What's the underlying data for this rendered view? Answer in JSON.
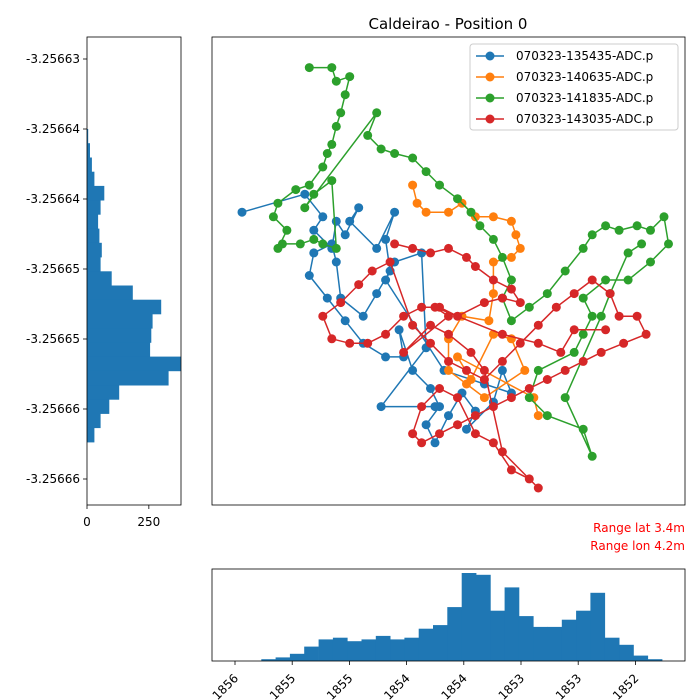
{
  "chart_data": [
    {
      "type": "scatter",
      "panel": "main",
      "title": "Caldeirao - Position 0",
      "grid": false,
      "legend_placement": "top-right",
      "xlim": [
        -3.2568,
        3.2563
      ],
      "ylim": [
        -3.256666,
        -3.256633
      ],
      "annotations": [
        "Range lat 3.4m",
        "Range lon 4.2m"
      ],
      "series": [
        {
          "name": "070323-135435-ADC.p",
          "color": "#1f77b4",
          "points": [
            [
              0.04,
              0.37
            ],
            [
              0.18,
              0.33
            ],
            [
              0.22,
              0.38
            ],
            [
              0.2,
              0.41
            ],
            [
              0.24,
              0.45
            ],
            [
              0.25,
              0.39
            ],
            [
              0.27,
              0.42
            ],
            [
              0.3,
              0.36
            ],
            [
              0.28,
              0.39
            ],
            [
              0.34,
              0.45
            ],
            [
              0.38,
              0.37
            ],
            [
              0.36,
              0.43
            ],
            [
              0.37,
              0.5
            ],
            [
              0.34,
              0.55
            ],
            [
              0.31,
              0.6
            ],
            [
              0.26,
              0.56
            ],
            [
              0.25,
              0.48
            ],
            [
              0.24,
              0.44
            ],
            [
              0.2,
              0.46
            ],
            [
              0.19,
              0.51
            ],
            [
              0.23,
              0.56
            ],
            [
              0.27,
              0.61
            ],
            [
              0.31,
              0.66
            ],
            [
              0.36,
              0.69
            ],
            [
              0.4,
              0.69
            ],
            [
              0.39,
              0.63
            ],
            [
              0.42,
              0.72
            ],
            [
              0.46,
              0.76
            ],
            [
              0.48,
              0.8
            ],
            [
              0.45,
              0.84
            ],
            [
              0.47,
              0.88
            ],
            [
              0.5,
              0.82
            ],
            [
              0.53,
              0.77
            ],
            [
              0.56,
              0.81
            ],
            [
              0.54,
              0.85
            ],
            [
              0.6,
              0.79
            ],
            [
              0.62,
              0.72
            ],
            [
              0.64,
              0.77
            ],
            [
              0.58,
              0.75
            ],
            [
              0.49,
              0.72
            ],
            [
              0.36,
              0.52
            ],
            [
              0.38,
              0.48
            ],
            [
              0.44,
              0.46
            ],
            [
              0.45,
              0.67
            ],
            [
              0.35,
              0.8
            ],
            [
              0.47,
              0.8
            ]
          ]
        },
        {
          "name": "070323-140635-ADC.p",
          "color": "#ff7f0e",
          "points": [
            [
              0.42,
              0.31
            ],
            [
              0.43,
              0.35
            ],
            [
              0.45,
              0.37
            ],
            [
              0.5,
              0.37
            ],
            [
              0.53,
              0.35
            ],
            [
              0.56,
              0.38
            ],
            [
              0.6,
              0.38
            ],
            [
              0.64,
              0.39
            ],
            [
              0.65,
              0.42
            ],
            [
              0.66,
              0.45
            ],
            [
              0.64,
              0.47
            ],
            [
              0.6,
              0.48
            ],
            [
              0.6,
              0.55
            ],
            [
              0.59,
              0.61
            ],
            [
              0.53,
              0.6
            ],
            [
              0.5,
              0.65
            ],
            [
              0.5,
              0.72
            ],
            [
              0.54,
              0.75
            ],
            [
              0.58,
              0.78
            ],
            [
              0.67,
              0.72
            ],
            [
              0.64,
              0.65
            ],
            [
              0.6,
              0.64
            ],
            [
              0.55,
              0.74
            ],
            [
              0.52,
              0.69
            ],
            [
              0.69,
              0.78
            ],
            [
              0.7,
              0.82
            ]
          ]
        },
        {
          "name": "070323-141835-ADC.p",
          "color": "#2ca02c",
          "points": [
            [
              0.19,
              0.05
            ],
            [
              0.24,
              0.05
            ],
            [
              0.25,
              0.08
            ],
            [
              0.28,
              0.07
            ],
            [
              0.27,
              0.11
            ],
            [
              0.26,
              0.15
            ],
            [
              0.25,
              0.18
            ],
            [
              0.24,
              0.22
            ],
            [
              0.23,
              0.24
            ],
            [
              0.22,
              0.27
            ],
            [
              0.19,
              0.31
            ],
            [
              0.16,
              0.32
            ],
            [
              0.12,
              0.35
            ],
            [
              0.11,
              0.38
            ],
            [
              0.14,
              0.41
            ],
            [
              0.12,
              0.45
            ],
            [
              0.13,
              0.44
            ],
            [
              0.17,
              0.44
            ],
            [
              0.2,
              0.43
            ],
            [
              0.22,
              0.44
            ],
            [
              0.25,
              0.45
            ],
            [
              0.24,
              0.3
            ],
            [
              0.2,
              0.33
            ],
            [
              0.18,
              0.36
            ],
            [
              0.34,
              0.15
            ],
            [
              0.32,
              0.2
            ],
            [
              0.35,
              0.23
            ],
            [
              0.38,
              0.24
            ],
            [
              0.42,
              0.25
            ],
            [
              0.45,
              0.28
            ],
            [
              0.48,
              0.31
            ],
            [
              0.52,
              0.34
            ],
            [
              0.55,
              0.37
            ],
            [
              0.57,
              0.4
            ],
            [
              0.6,
              0.43
            ],
            [
              0.62,
              0.47
            ],
            [
              0.64,
              0.52
            ],
            [
              0.62,
              0.56
            ],
            [
              0.64,
              0.61
            ],
            [
              0.68,
              0.58
            ],
            [
              0.72,
              0.55
            ],
            [
              0.76,
              0.5
            ],
            [
              0.8,
              0.45
            ],
            [
              0.82,
              0.42
            ],
            [
              0.85,
              0.4
            ],
            [
              0.88,
              0.41
            ],
            [
              0.92,
              0.4
            ],
            [
              0.95,
              0.41
            ],
            [
              0.98,
              0.38
            ],
            [
              0.99,
              0.44
            ],
            [
              0.95,
              0.48
            ],
            [
              0.9,
              0.52
            ],
            [
              0.85,
              0.52
            ],
            [
              0.8,
              0.56
            ],
            [
              0.82,
              0.6
            ],
            [
              0.8,
              0.64
            ],
            [
              0.78,
              0.68
            ],
            [
              0.7,
              0.72
            ],
            [
              0.68,
              0.78
            ],
            [
              0.72,
              0.82
            ],
            [
              0.8,
              0.85
            ],
            [
              0.82,
              0.91
            ],
            [
              0.76,
              0.78
            ],
            [
              0.84,
              0.6
            ],
            [
              0.86,
              0.55
            ],
            [
              0.9,
              0.46
            ],
            [
              0.93,
              0.44
            ]
          ]
        },
        {
          "name": "070323-143035-ADC.p",
          "color": "#d62728",
          "points": [
            [
              0.38,
              0.44
            ],
            [
              0.42,
              0.45
            ],
            [
              0.46,
              0.46
            ],
            [
              0.5,
              0.45
            ],
            [
              0.54,
              0.47
            ],
            [
              0.56,
              0.49
            ],
            [
              0.6,
              0.52
            ],
            [
              0.64,
              0.54
            ],
            [
              0.66,
              0.57
            ],
            [
              0.62,
              0.56
            ],
            [
              0.58,
              0.57
            ],
            [
              0.52,
              0.6
            ],
            [
              0.48,
              0.58
            ],
            [
              0.44,
              0.58
            ],
            [
              0.4,
              0.6
            ],
            [
              0.36,
              0.64
            ],
            [
              0.32,
              0.66
            ],
            [
              0.28,
              0.66
            ],
            [
              0.24,
              0.65
            ],
            [
              0.22,
              0.6
            ],
            [
              0.26,
              0.57
            ],
            [
              0.3,
              0.53
            ],
            [
              0.33,
              0.5
            ],
            [
              0.37,
              0.48
            ],
            [
              0.42,
              0.62
            ],
            [
              0.46,
              0.66
            ],
            [
              0.5,
              0.7
            ],
            [
              0.54,
              0.72
            ],
            [
              0.58,
              0.74
            ],
            [
              0.62,
              0.7
            ],
            [
              0.66,
              0.66
            ],
            [
              0.7,
              0.62
            ],
            [
              0.74,
              0.58
            ],
            [
              0.78,
              0.55
            ],
            [
              0.82,
              0.52
            ],
            [
              0.86,
              0.55
            ],
            [
              0.88,
              0.6
            ],
            [
              0.92,
              0.6
            ],
            [
              0.94,
              0.64
            ],
            [
              0.89,
              0.66
            ],
            [
              0.84,
              0.68
            ],
            [
              0.8,
              0.7
            ],
            [
              0.76,
              0.72
            ],
            [
              0.72,
              0.74
            ],
            [
              0.68,
              0.76
            ],
            [
              0.64,
              0.78
            ],
            [
              0.6,
              0.8
            ],
            [
              0.56,
              0.82
            ],
            [
              0.52,
              0.84
            ],
            [
              0.48,
              0.86
            ],
            [
              0.44,
              0.88
            ],
            [
              0.42,
              0.86
            ],
            [
              0.44,
              0.8
            ],
            [
              0.48,
              0.76
            ],
            [
              0.52,
              0.78
            ],
            [
              0.56,
              0.86
            ],
            [
              0.6,
              0.88
            ],
            [
              0.64,
              0.94
            ],
            [
              0.68,
              0.96
            ],
            [
              0.7,
              0.98
            ],
            [
              0.62,
              0.9
            ],
            [
              0.58,
              0.72
            ],
            [
              0.55,
              0.68
            ],
            [
              0.5,
              0.64
            ],
            [
              0.46,
              0.62
            ],
            [
              0.4,
              0.68
            ],
            [
              0.5,
              0.6
            ],
            [
              0.47,
              0.58
            ],
            [
              0.62,
              0.64
            ],
            [
              0.7,
              0.66
            ],
            [
              0.75,
              0.68
            ],
            [
              0.78,
              0.63
            ],
            [
              0.85,
              0.63
            ]
          ]
        }
      ]
    },
    {
      "type": "bar",
      "panel": "left-histogram",
      "orientation": "horizontal",
      "y_ticks": [
        "-3.25663",
        "-3.25664",
        "-3.25664",
        "-3.25665",
        "-3.25665",
        "-3.25666",
        "-3.25666"
      ],
      "x_ticks": [
        "0",
        "250"
      ],
      "xlim": [
        0,
        380
      ],
      "values": [
        5,
        12,
        20,
        30,
        70,
        55,
        45,
        50,
        60,
        55,
        100,
        185,
        300,
        265,
        260,
        255,
        380,
        330,
        130,
        90,
        55,
        30
      ]
    },
    {
      "type": "bar",
      "panel": "bottom-histogram",
      "orientation": "vertical",
      "x_ticks": [
        "1856",
        "1855",
        "1855",
        "1854",
        "1854",
        "1853",
        "1853",
        "1852"
      ],
      "values": [
        0,
        1,
        2,
        4,
        8,
        12,
        13,
        11,
        12,
        14,
        12,
        13,
        18,
        20,
        30,
        49,
        48,
        28,
        41,
        25,
        19,
        19,
        23,
        28,
        38,
        13,
        9,
        3,
        1
      ]
    }
  ]
}
